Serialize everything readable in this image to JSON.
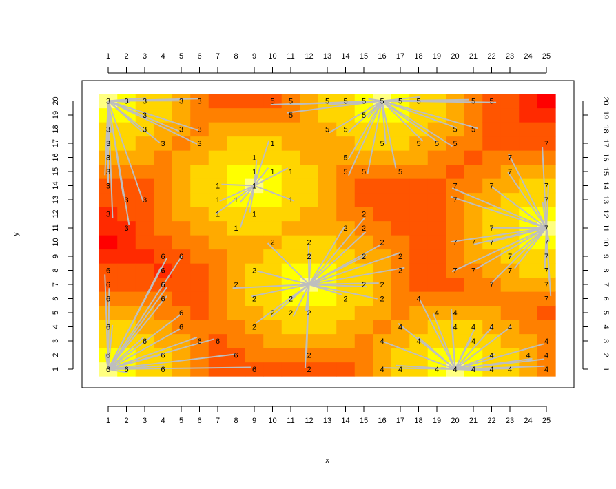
{
  "chart_data": {
    "type": "heatmap",
    "title": "",
    "xlabel": "x",
    "ylabel": "y",
    "xlim": [
      0.5,
      25.5
    ],
    "ylim": [
      0.5,
      20.5
    ],
    "x_ticks": [
      1,
      2,
      3,
      4,
      5,
      6,
      7,
      8,
      9,
      10,
      11,
      12,
      13,
      14,
      15,
      16,
      17,
      18,
      19,
      20,
      21,
      22,
      23,
      24,
      25
    ],
    "y_ticks": [
      1,
      2,
      3,
      4,
      5,
      6,
      7,
      8,
      9,
      10,
      11,
      12,
      13,
      14,
      15,
      16,
      17,
      18,
      19,
      20
    ],
    "grid": false,
    "legend": "none",
    "colors": {
      "palette": [
        "#ff0000",
        "#ff2a00",
        "#ff5500",
        "#ff8000",
        "#ffaa00",
        "#ffd500",
        "#ffff00",
        "#ffff80"
      ],
      "segment": "#bebebe",
      "box": "#000000"
    },
    "centers": [
      {
        "cluster": "1",
        "x": 9,
        "y": 14
      },
      {
        "cluster": "2",
        "x": 12,
        "y": 7
      },
      {
        "cluster": "3",
        "x": 1,
        "y": 20
      },
      {
        "cluster": "4",
        "x": 20,
        "y": 1
      },
      {
        "cluster": "5",
        "x": 16,
        "y": 20
      },
      {
        "cluster": "6",
        "x": 1,
        "y": 1
      },
      {
        "cluster": "7",
        "x": 25,
        "y": 11
      }
    ],
    "labels": [
      {
        "x": 1,
        "y": 20,
        "t": "3"
      },
      {
        "x": 2,
        "y": 20,
        "t": "3"
      },
      {
        "x": 3,
        "y": 20,
        "t": "3"
      },
      {
        "x": 5,
        "y": 20,
        "t": "3"
      },
      {
        "x": 6,
        "y": 20,
        "t": "3"
      },
      {
        "x": 10,
        "y": 20,
        "t": "5"
      },
      {
        "x": 11,
        "y": 20,
        "t": "5"
      },
      {
        "x": 13,
        "y": 20,
        "t": "5"
      },
      {
        "x": 14,
        "y": 20,
        "t": "5"
      },
      {
        "x": 15,
        "y": 20,
        "t": "5"
      },
      {
        "x": 16,
        "y": 20,
        "t": "5"
      },
      {
        "x": 17,
        "y": 20,
        "t": "5"
      },
      {
        "x": 18,
        "y": 20,
        "t": "5"
      },
      {
        "x": 21,
        "y": 20,
        "t": "5"
      },
      {
        "x": 22,
        "y": 20,
        "t": "5"
      },
      {
        "x": 3,
        "y": 19,
        "t": "3"
      },
      {
        "x": 11,
        "y": 19,
        "t": "5"
      },
      {
        "x": 15,
        "y": 19,
        "t": "5"
      },
      {
        "x": 1,
        "y": 18,
        "t": "3"
      },
      {
        "x": 3,
        "y": 18,
        "t": "3"
      },
      {
        "x": 5,
        "y": 18,
        "t": "3"
      },
      {
        "x": 6,
        "y": 18,
        "t": "3"
      },
      {
        "x": 13,
        "y": 18,
        "t": "5"
      },
      {
        "x": 14,
        "y": 18,
        "t": "5"
      },
      {
        "x": 20,
        "y": 18,
        "t": "5"
      },
      {
        "x": 21,
        "y": 18,
        "t": "5"
      },
      {
        "x": 1,
        "y": 17,
        "t": "3"
      },
      {
        "x": 4,
        "y": 17,
        "t": "3"
      },
      {
        "x": 6,
        "y": 17,
        "t": "3"
      },
      {
        "x": 10,
        "y": 17,
        "t": "1"
      },
      {
        "x": 16,
        "y": 17,
        "t": "5"
      },
      {
        "x": 18,
        "y": 17,
        "t": "5"
      },
      {
        "x": 19,
        "y": 17,
        "t": "5"
      },
      {
        "x": 20,
        "y": 17,
        "t": "5"
      },
      {
        "x": 25,
        "y": 17,
        "t": "7"
      },
      {
        "x": 1,
        "y": 16,
        "t": "3"
      },
      {
        "x": 9,
        "y": 16,
        "t": "1"
      },
      {
        "x": 14,
        "y": 16,
        "t": "5"
      },
      {
        "x": 23,
        "y": 16,
        "t": "7"
      },
      {
        "x": 1,
        "y": 15,
        "t": "3"
      },
      {
        "x": 9,
        "y": 15,
        "t": "1"
      },
      {
        "x": 10,
        "y": 15,
        "t": "1"
      },
      {
        "x": 11,
        "y": 15,
        "t": "1"
      },
      {
        "x": 14,
        "y": 15,
        "t": "5"
      },
      {
        "x": 15,
        "y": 15,
        "t": "5"
      },
      {
        "x": 17,
        "y": 15,
        "t": "5"
      },
      {
        "x": 23,
        "y": 15,
        "t": "7"
      },
      {
        "x": 1,
        "y": 14,
        "t": "3"
      },
      {
        "x": 7,
        "y": 14,
        "t": "1"
      },
      {
        "x": 9,
        "y": 14,
        "t": "1"
      },
      {
        "x": 20,
        "y": 14,
        "t": "7"
      },
      {
        "x": 22,
        "y": 14,
        "t": "7"
      },
      {
        "x": 25,
        "y": 14,
        "t": "7"
      },
      {
        "x": 2,
        "y": 13,
        "t": "3"
      },
      {
        "x": 3,
        "y": 13,
        "t": "3"
      },
      {
        "x": 7,
        "y": 13,
        "t": "1"
      },
      {
        "x": 8,
        "y": 13,
        "t": "1"
      },
      {
        "x": 11,
        "y": 13,
        "t": "1"
      },
      {
        "x": 20,
        "y": 13,
        "t": "7"
      },
      {
        "x": 25,
        "y": 13,
        "t": "7"
      },
      {
        "x": 1,
        "y": 12,
        "t": "3"
      },
      {
        "x": 7,
        "y": 12,
        "t": "1"
      },
      {
        "x": 9,
        "y": 12,
        "t": "1"
      },
      {
        "x": 15,
        "y": 12,
        "t": "2"
      },
      {
        "x": 2,
        "y": 11,
        "t": "3"
      },
      {
        "x": 8,
        "y": 11,
        "t": "1"
      },
      {
        "x": 14,
        "y": 11,
        "t": "2"
      },
      {
        "x": 15,
        "y": 11,
        "t": "2"
      },
      {
        "x": 22,
        "y": 11,
        "t": "7"
      },
      {
        "x": 25,
        "y": 11,
        "t": "7"
      },
      {
        "x": 10,
        "y": 10,
        "t": "2"
      },
      {
        "x": 12,
        "y": 10,
        "t": "2"
      },
      {
        "x": 16,
        "y": 10,
        "t": "2"
      },
      {
        "x": 20,
        "y": 10,
        "t": "7"
      },
      {
        "x": 21,
        "y": 10,
        "t": "7"
      },
      {
        "x": 22,
        "y": 10,
        "t": "7"
      },
      {
        "x": 25,
        "y": 10,
        "t": "7"
      },
      {
        "x": 4,
        "y": 9,
        "t": "6"
      },
      {
        "x": 5,
        "y": 9,
        "t": "6"
      },
      {
        "x": 12,
        "y": 9,
        "t": "2"
      },
      {
        "x": 15,
        "y": 9,
        "t": "2"
      },
      {
        "x": 17,
        "y": 9,
        "t": "2"
      },
      {
        "x": 23,
        "y": 9,
        "t": "7"
      },
      {
        "x": 25,
        "y": 9,
        "t": "7"
      },
      {
        "x": 1,
        "y": 8,
        "t": "6"
      },
      {
        "x": 4,
        "y": 8,
        "t": "6"
      },
      {
        "x": 9,
        "y": 8,
        "t": "2"
      },
      {
        "x": 17,
        "y": 8,
        "t": "2"
      },
      {
        "x": 20,
        "y": 8,
        "t": "7"
      },
      {
        "x": 21,
        "y": 8,
        "t": "7"
      },
      {
        "x": 23,
        "y": 8,
        "t": "7"
      },
      {
        "x": 25,
        "y": 8,
        "t": "7"
      },
      {
        "x": 1,
        "y": 7,
        "t": "6"
      },
      {
        "x": 4,
        "y": 7,
        "t": "6"
      },
      {
        "x": 8,
        "y": 7,
        "t": "2"
      },
      {
        "x": 15,
        "y": 7,
        "t": "2"
      },
      {
        "x": 16,
        "y": 7,
        "t": "2"
      },
      {
        "x": 22,
        "y": 7,
        "t": "7"
      },
      {
        "x": 25,
        "y": 7,
        "t": "7"
      },
      {
        "x": 1,
        "y": 6,
        "t": "6"
      },
      {
        "x": 4,
        "y": 6,
        "t": "6"
      },
      {
        "x": 9,
        "y": 6,
        "t": "2"
      },
      {
        "x": 11,
        "y": 6,
        "t": "2"
      },
      {
        "x": 14,
        "y": 6,
        "t": "2"
      },
      {
        "x": 16,
        "y": 6,
        "t": "2"
      },
      {
        "x": 18,
        "y": 6,
        "t": "4"
      },
      {
        "x": 25,
        "y": 6,
        "t": "7"
      },
      {
        "x": 5,
        "y": 5,
        "t": "6"
      },
      {
        "x": 10,
        "y": 5,
        "t": "2"
      },
      {
        "x": 11,
        "y": 5,
        "t": "2"
      },
      {
        "x": 12,
        "y": 5,
        "t": "2"
      },
      {
        "x": 19,
        "y": 5,
        "t": "4"
      },
      {
        "x": 20,
        "y": 5,
        "t": "4"
      },
      {
        "x": 1,
        "y": 4,
        "t": "6"
      },
      {
        "x": 5,
        "y": 4,
        "t": "6"
      },
      {
        "x": 9,
        "y": 4,
        "t": "2"
      },
      {
        "x": 17,
        "y": 4,
        "t": "4"
      },
      {
        "x": 20,
        "y": 4,
        "t": "4"
      },
      {
        "x": 21,
        "y": 4,
        "t": "4"
      },
      {
        "x": 22,
        "y": 4,
        "t": "4"
      },
      {
        "x": 23,
        "y": 4,
        "t": "4"
      },
      {
        "x": 3,
        "y": 3,
        "t": "6"
      },
      {
        "x": 6,
        "y": 3,
        "t": "6"
      },
      {
        "x": 7,
        "y": 3,
        "t": "6"
      },
      {
        "x": 16,
        "y": 3,
        "t": "4"
      },
      {
        "x": 18,
        "y": 3,
        "t": "4"
      },
      {
        "x": 21,
        "y": 3,
        "t": "4"
      },
      {
        "x": 25,
        "y": 3,
        "t": "4"
      },
      {
        "x": 1,
        "y": 2,
        "t": "6"
      },
      {
        "x": 4,
        "y": 2,
        "t": "6"
      },
      {
        "x": 8,
        "y": 2,
        "t": "6"
      },
      {
        "x": 12,
        "y": 2,
        "t": "2"
      },
      {
        "x": 22,
        "y": 2,
        "t": "4"
      },
      {
        "x": 24,
        "y": 2,
        "t": "4"
      },
      {
        "x": 25,
        "y": 2,
        "t": "4"
      },
      {
        "x": 1,
        "y": 1,
        "t": "6"
      },
      {
        "x": 2,
        "y": 1,
        "t": "6"
      },
      {
        "x": 4,
        "y": 1,
        "t": "6"
      },
      {
        "x": 9,
        "y": 1,
        "t": "6"
      },
      {
        "x": 12,
        "y": 1,
        "t": "2"
      },
      {
        "x": 16,
        "y": 1,
        "t": "4"
      },
      {
        "x": 17,
        "y": 1,
        "t": "4"
      },
      {
        "x": 19,
        "y": 1,
        "t": "4"
      },
      {
        "x": 20,
        "y": 1,
        "t": "4"
      },
      {
        "x": 21,
        "y": 1,
        "t": "4"
      },
      {
        "x": 22,
        "y": 1,
        "t": "4"
      },
      {
        "x": 23,
        "y": 1,
        "t": "4"
      },
      {
        "x": 25,
        "y": 1,
        "t": "4"
      }
    ]
  }
}
